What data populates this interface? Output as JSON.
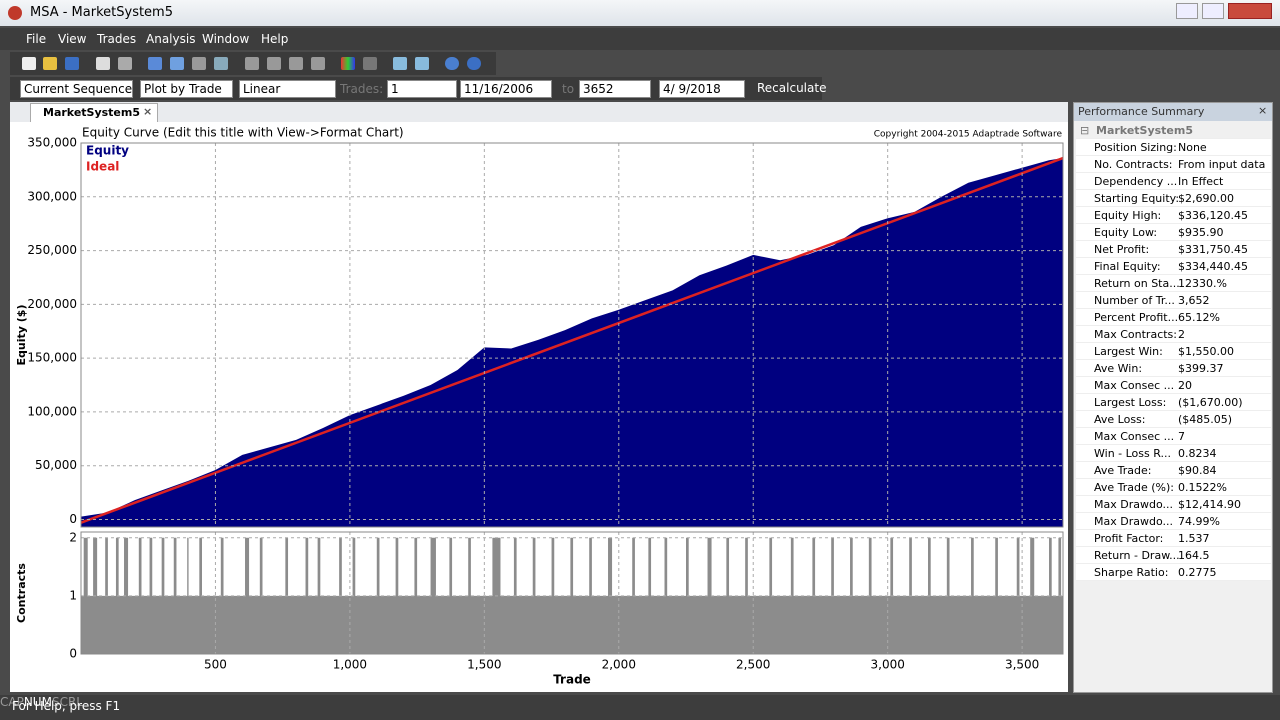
{
  "window": {
    "title": "MSA - MarketSystem5"
  },
  "menu": [
    "File",
    "View",
    "Trades",
    "Analysis",
    "Window",
    "Help"
  ],
  "params": {
    "sequence": "Current Sequence",
    "plot": "Plot by Trade",
    "scale": "Linear",
    "trades_label": "Trades:",
    "trades_from": "1",
    "date_from": "11/16/2006",
    "to_label": "to",
    "trades_to": "3652",
    "date_to": "4/ 9/2018",
    "button": "Recalculate"
  },
  "tab": "MarketSystem5",
  "chart_data": [
    {
      "type": "area",
      "title": "Equity Curve (Edit this title with View->Format Chart)",
      "copyright": "Copyright 2004-2015 Adaptrade Software",
      "y_label": "Equity ($)",
      "xlim": [
        0,
        3652
      ],
      "ylim": [
        -7000,
        350000
      ],
      "xgrid": [
        500,
        1000,
        1500,
        2000,
        2500,
        3000,
        3500
      ],
      "yticks": [
        0,
        {
          "value": 50000,
          "label": "50,000"
        },
        {
          "value": 100000,
          "label": "100,000"
        },
        {
          "value": 150000,
          "label": "150,000"
        },
        {
          "value": 200000,
          "label": "200,000"
        },
        {
          "value": 250000,
          "label": "250,000"
        },
        {
          "value": 300000,
          "label": "300,000"
        },
        {
          "value": 350000,
          "label": "350,000"
        }
      ],
      "grid": true,
      "series": [
        {
          "name": "Equity",
          "color": "#000080",
          "x": [
            0,
            100,
            200,
            300,
            400,
            500,
            600,
            700,
            800,
            900,
            1000,
            1100,
            1200,
            1300,
            1400,
            1500,
            1600,
            1700,
            1800,
            1900,
            2000,
            2100,
            2200,
            2300,
            2400,
            2500,
            2600,
            2700,
            2800,
            2900,
            3000,
            3100,
            3200,
            3300,
            3400,
            3500,
            3600,
            3652
          ],
          "values": [
            2690,
            6500,
            18000,
            27000,
            36000,
            46000,
            60000,
            67000,
            74000,
            85000,
            97000,
            106000,
            115000,
            125000,
            139000,
            160000,
            159000,
            167000,
            176000,
            187000,
            195000,
            204000,
            213000,
            227000,
            236000,
            246000,
            241000,
            246000,
            255000,
            272000,
            280000,
            286000,
            300000,
            313000,
            320000,
            327000,
            334000,
            336000
          ]
        },
        {
          "name": "Ideal",
          "color": "#dd2222",
          "type": "line",
          "x": [
            0,
            3652
          ],
          "values": [
            -3000,
            336000
          ]
        }
      ]
    },
    {
      "type": "step",
      "y_label": "Contracts",
      "x_label": "Trade",
      "xlim": [
        0,
        3652
      ],
      "ylim": [
        0,
        2.1
      ],
      "xticks": [
        500,
        {
          "value": 1000,
          "label": "1,000"
        },
        {
          "value": 1500,
          "label": "1,500"
        },
        {
          "value": 2000,
          "label": "2,000"
        },
        {
          "value": 2500,
          "label": "2,500"
        },
        {
          "value": 3000,
          "label": "3,000"
        },
        {
          "value": 3500,
          "label": "3,500"
        }
      ],
      "yticks": [
        0,
        1,
        2
      ],
      "grid": true,
      "series": [
        {
          "color": "#8c8c8c",
          "x": [
            0,
            10,
            25,
            45,
            60,
            90,
            100,
            130,
            140,
            160,
            175,
            215,
            225,
            255,
            265,
            300,
            310,
            345,
            355,
            395,
            400,
            440,
            450,
            520,
            530,
            610,
            625,
            665,
            675,
            760,
            770,
            835,
            845,
            880,
            890,
            960,
            970,
            1010,
            1020,
            1100,
            1110,
            1170,
            1180,
            1240,
            1250,
            1300,
            1320,
            1370,
            1380,
            1440,
            1450,
            1530,
            1560,
            1610,
            1620,
            1680,
            1690,
            1750,
            1760,
            1820,
            1830,
            1890,
            1900,
            1960,
            1975,
            2050,
            2060,
            2110,
            2120,
            2170,
            2180,
            2250,
            2260,
            2330,
            2345,
            2400,
            2410,
            2470,
            2480,
            2560,
            2570,
            2640,
            2650,
            2720,
            2730,
            2790,
            2800,
            2860,
            2870,
            2930,
            2940,
            3010,
            3020,
            3080,
            3090,
            3150,
            3160,
            3220,
            3230,
            3310,
            3320,
            3400,
            3410,
            3480,
            3490,
            3530,
            3545,
            3600,
            3610,
            3635,
            3645
          ],
          "values": [
            1,
            2,
            1,
            2,
            1,
            2,
            1,
            2,
            1,
            2,
            1,
            2,
            1,
            2,
            1,
            2,
            1,
            2,
            1,
            2,
            1,
            2,
            1,
            2,
            1,
            2,
            1,
            2,
            1,
            2,
            1,
            2,
            1,
            2,
            1,
            2,
            1,
            2,
            1,
            2,
            1,
            2,
            1,
            2,
            1,
            2,
            1,
            2,
            1,
            2,
            1,
            2,
            1,
            2,
            1,
            2,
            1,
            2,
            1,
            2,
            1,
            2,
            1,
            2,
            1,
            2,
            1,
            2,
            1,
            2,
            1,
            2,
            1,
            2,
            1,
            2,
            1,
            2,
            1,
            2,
            1,
            2,
            1,
            2,
            1,
            2,
            1,
            2,
            1,
            2,
            1,
            2,
            1,
            2,
            1,
            2,
            1,
            2,
            1,
            2,
            1,
            2,
            1,
            2,
            1,
            2,
            1,
            2,
            1,
            2,
            1
          ]
        }
      ]
    }
  ],
  "summary": {
    "title": "Performance Summary",
    "root": "MarketSystem5",
    "rows": [
      [
        "Position Sizing:",
        "None"
      ],
      [
        "No. Contracts:",
        "From input data"
      ],
      [
        "Dependency ...",
        "In Effect"
      ],
      [
        "Starting Equity:",
        "$2,690.00"
      ],
      [
        "Equity High:",
        "$336,120.45"
      ],
      [
        "Equity Low:",
        "$935.90"
      ],
      [
        "Net Profit:",
        "$331,750.45"
      ],
      [
        "Final Equity:",
        "$334,440.45"
      ],
      [
        "Return on Sta...",
        "12330.%"
      ],
      [
        "Number of Tr...",
        "3,652"
      ],
      [
        "Percent Profit...",
        "65.12%"
      ],
      [
        "Max Contracts:",
        "2"
      ],
      [
        "Largest Win:",
        "$1,550.00"
      ],
      [
        "Ave Win:",
        "$399.37"
      ],
      [
        "Max Consec ...",
        "20"
      ],
      [
        "Largest Loss:",
        "($1,670.00)"
      ],
      [
        "Ave Loss:",
        "($485.05)"
      ],
      [
        "Max Consec ...",
        "7"
      ],
      [
        "Win - Loss R...",
        "0.8234"
      ],
      [
        "Ave Trade:",
        "$90.84"
      ],
      [
        "Ave Trade (%):",
        "0.1522%"
      ],
      [
        "Max Drawdo...",
        "$12,414.90"
      ],
      [
        "Max Drawdo...",
        "74.99%"
      ],
      [
        "Profit Factor:",
        "1.537"
      ],
      [
        "Return - Draw...",
        "164.5"
      ],
      [
        "Sharpe Ratio:",
        "0.2775"
      ]
    ]
  },
  "status": {
    "help": "For Help, press F1",
    "indicators": [
      "CAP",
      "NUM",
      "SCRL"
    ]
  }
}
